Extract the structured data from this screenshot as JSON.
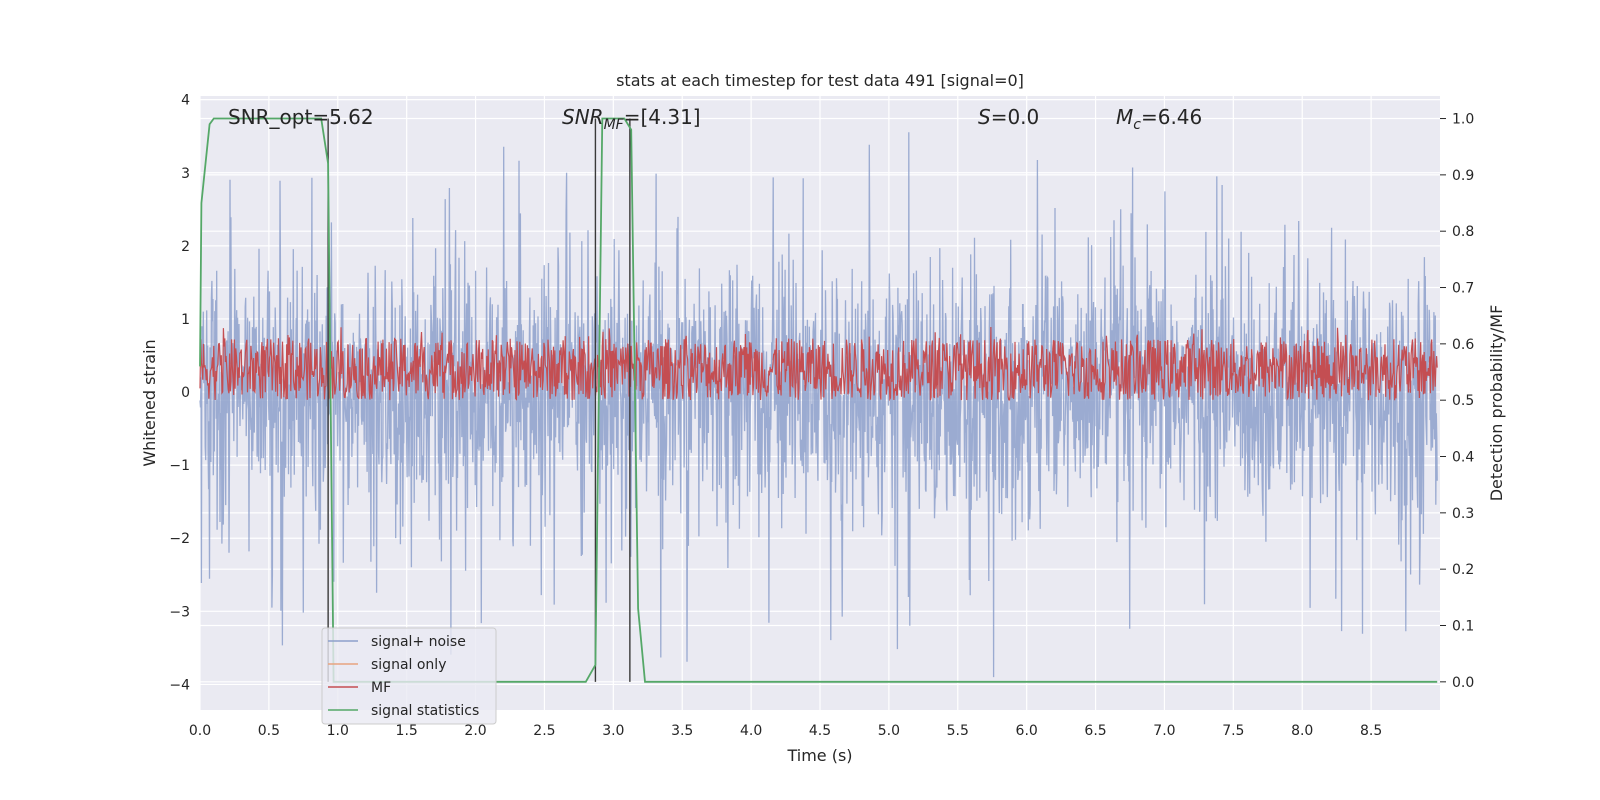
{
  "chart_data": {
    "type": "line",
    "title": "stats at each timestep for test data 491 [signal=0]",
    "xlabel": "Time (s)",
    "ylabel_left": "Whitened strain",
    "ylabel_right": "Detection probability/MF",
    "xlim": [
      0.0,
      9.0
    ],
    "ylim_left": [
      -4.35,
      4.05
    ],
    "ylim_right": [
      -0.05,
      1.04
    ],
    "xticks": [
      "0.0",
      "0.5",
      "1.0",
      "1.5",
      "2.0",
      "2.5",
      "3.0",
      "3.5",
      "4.0",
      "4.5",
      "5.0",
      "5.5",
      "6.0",
      "6.5",
      "7.0",
      "7.5",
      "8.0",
      "8.5"
    ],
    "yticks_left": [
      "4",
      "3",
      "2",
      "1",
      "0",
      "−1",
      "−2",
      "−3",
      "−4"
    ],
    "yticks_right": [
      "1.0",
      "0.9",
      "0.8",
      "0.7",
      "0.6",
      "0.5",
      "0.4",
      "0.3",
      "0.2",
      "0.1",
      "0.0"
    ],
    "grid": true,
    "legend_position": "lower-left",
    "annotations": {
      "snr_opt": "SNR_opt=5.62",
      "snr_mf_main": "SNR",
      "snr_mf_sub": "MF",
      "snr_mf_value": "=[4.31]",
      "s_label": "S",
      "s_value": "=0.0",
      "mc_main": "M",
      "mc_sub": "c",
      "mc_value": "=6.46"
    },
    "vertical_lines_x": [
      0.93,
      2.87,
      3.12
    ],
    "series": [
      {
        "name": "signal+ noise",
        "axis": "left",
        "color": "#8da0cb",
        "description_envelope": {
          "upper_typical": 1.4,
          "lower_typical": -1.4,
          "max_peak": 3.7,
          "min_peak": -3.9
        }
      },
      {
        "name": "signal only",
        "axis": "left",
        "color": "#e8a380",
        "values": []
      },
      {
        "name": "MF",
        "axis": "right",
        "color": "#c44e52",
        "band": {
          "low": 0.5,
          "high": 0.61,
          "max_peak": 0.63
        }
      },
      {
        "name": "signal statistics",
        "axis": "right",
        "color": "#55a868",
        "x": [
          0.0,
          0.01,
          0.07,
          0.1,
          0.15,
          0.3,
          0.5,
          0.7,
          0.88,
          0.93,
          0.97,
          1.0,
          1.5,
          2.0,
          2.5,
          2.8,
          2.87,
          2.92,
          2.95,
          3.0,
          3.08,
          3.13,
          3.18,
          3.23,
          3.28,
          3.5,
          4.0,
          5.0,
          6.0,
          7.0,
          8.0,
          8.98
        ],
        "y": [
          0.56,
          0.85,
          0.99,
          1.0,
          1.0,
          1.0,
          1.0,
          1.0,
          1.0,
          0.92,
          0.0,
          0.0,
          0.0,
          0.0,
          0.0,
          0.0,
          0.03,
          1.0,
          1.0,
          1.0,
          1.0,
          0.98,
          0.13,
          0.0,
          0.0,
          0.0,
          0.0,
          0.0,
          0.0,
          0.0,
          0.0,
          0.0
        ]
      }
    ]
  }
}
